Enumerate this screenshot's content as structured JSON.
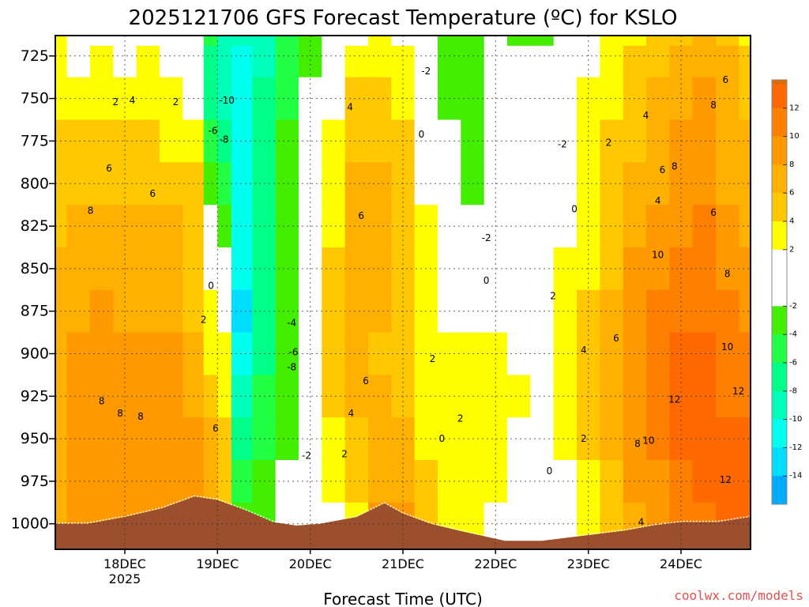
{
  "chart_data": {
    "type": "heatmap",
    "title": "2025121706 GFS Forecast Temperature (ºC) for KSLO",
    "xlabel": "Forecast Time (UTC)",
    "ylabel": "",
    "watermark": "coolwx.com/models",
    "x_ticks": [
      {
        "label": "18DEC",
        "sublabel": "2025",
        "t": 18.0
      },
      {
        "label": "19DEC",
        "sublabel": "",
        "t": 19.0
      },
      {
        "label": "20DEC",
        "sublabel": "",
        "t": 20.0
      },
      {
        "label": "21DEC",
        "sublabel": "",
        "t": 21.0
      },
      {
        "label": "22DEC",
        "sublabel": "",
        "t": 22.0
      },
      {
        "label": "23DEC",
        "sublabel": "",
        "t": 23.0
      },
      {
        "label": "24DEC",
        "sublabel": "",
        "t": 24.0
      }
    ],
    "xlim": [
      17.25,
      24.75
    ],
    "y_ticks": [
      725,
      750,
      775,
      800,
      825,
      850,
      875,
      900,
      925,
      950,
      975,
      1000
    ],
    "ylim": [
      1015,
      713
    ],
    "grid": true,
    "colorbar": {
      "ticks": [
        12,
        10,
        8,
        6,
        4,
        2,
        -2,
        -4,
        -6,
        -8,
        -10,
        -12,
        -14
      ],
      "bands": [
        {
          "min": 12,
          "max": 14,
          "color": "#ff6a00"
        },
        {
          "min": 10,
          "max": 12,
          "color": "#ff7f00"
        },
        {
          "min": 8,
          "max": 10,
          "color": "#ff9900"
        },
        {
          "min": 6,
          "max": 8,
          "color": "#ffb000"
        },
        {
          "min": 4,
          "max": 6,
          "color": "#ffc800"
        },
        {
          "min": 2,
          "max": 4,
          "color": "#ffff00"
        },
        {
          "min": -2,
          "max": 2,
          "color": "#ffffff"
        },
        {
          "min": -4,
          "max": -2,
          "color": "#44ee00"
        },
        {
          "min": -6,
          "max": -4,
          "color": "#22ff44"
        },
        {
          "min": -8,
          "max": -6,
          "color": "#00ff88"
        },
        {
          "min": -10,
          "max": -8,
          "color": "#00ffbb"
        },
        {
          "min": -12,
          "max": -10,
          "color": "#00ffee"
        },
        {
          "min": -14,
          "max": -12,
          "color": "#00ddff"
        },
        {
          "min": -16,
          "max": -14,
          "color": "#00aaff"
        }
      ],
      "top_color": "#e06a00"
    },
    "columns_t": [
      17.25,
      17.5,
      17.75,
      18.0,
      18.25,
      18.5,
      18.75,
      18.95,
      19.05,
      19.25,
      19.5,
      19.75,
      20.0,
      20.25,
      20.5,
      20.75,
      21.0,
      21.25,
      21.5,
      21.75,
      22.0,
      22.25,
      22.5,
      22.75,
      23.0,
      23.25,
      23.5,
      23.75,
      24.0,
      24.25,
      24.5,
      24.75
    ],
    "pressure_levels": [
      713,
      725,
      750,
      775,
      800,
      825,
      850,
      875,
      900,
      925,
      950,
      975,
      1000
    ],
    "temperature": [
      [
        2,
        2,
        3,
        4,
        4,
        5,
        6,
        6,
        7,
        7,
        7,
        7,
        7
      ],
      [
        0,
        1,
        2,
        4,
        5,
        6,
        7,
        7,
        8,
        8,
        8,
        8,
        8
      ],
      [
        1,
        2,
        3,
        4,
        5,
        6,
        7,
        8,
        8,
        8,
        8,
        8,
        8
      ],
      [
        0,
        1,
        2,
        4,
        5,
        6,
        7,
        7,
        8,
        8,
        8,
        8,
        8
      ],
      [
        1,
        2,
        3,
        4,
        5,
        6,
        7,
        7,
        8,
        8,
        8,
        8,
        8
      ],
      [
        1,
        1,
        2,
        3,
        5,
        6,
        7,
        7,
        8,
        8,
        9,
        9,
        9
      ],
      [
        0,
        0,
        1,
        2,
        4,
        4,
        5,
        5,
        6,
        7,
        8,
        9,
        10
      ],
      [
        -6,
        -7,
        -8,
        -6,
        -3,
        -1,
        0,
        2,
        3,
        5,
        6,
        6,
        6
      ],
      [
        -9,
        -10,
        -9,
        -8,
        -6,
        -4,
        -1,
        1,
        2,
        3,
        4,
        4,
        4
      ],
      [
        -10,
        -11,
        -11,
        -11,
        -11,
        -12,
        -12,
        -13,
        -12,
        -10,
        -8,
        -6,
        -4
      ],
      [
        -9,
        -9,
        -8,
        -8,
        -8,
        -8,
        -8,
        -7,
        -7,
        -6,
        -5,
        -4,
        -3
      ],
      [
        -5,
        -5,
        -5,
        -4,
        -4,
        -3,
        -4,
        -4,
        -4,
        -4,
        -3,
        -2,
        -2
      ],
      [
        -3,
        -3,
        -2,
        -1,
        0,
        1,
        1,
        1,
        1,
        1,
        1,
        1,
        0
      ],
      [
        -2,
        -1,
        1,
        2,
        3,
        3,
        4,
        4,
        4,
        4,
        3,
        2,
        1
      ],
      [
        1,
        2,
        4,
        5,
        6,
        6,
        7,
        7,
        7,
        6,
        5,
        4,
        3
      ],
      [
        2,
        3,
        4,
        5,
        6,
        6,
        6,
        6,
        5,
        6,
        6,
        7,
        8
      ],
      [
        1,
        2,
        3,
        4,
        4,
        4,
        4,
        4,
        4,
        5,
        6,
        7,
        8
      ],
      [
        -2,
        -1,
        0,
        1,
        1,
        2,
        2,
        2,
        2,
        3,
        3,
        4,
        4
      ],
      [
        -3,
        -3,
        -3,
        -2,
        -2,
        -1,
        0,
        1,
        2,
        2,
        2,
        2,
        2
      ],
      [
        -3,
        -3,
        -3,
        -3,
        -3,
        -2,
        0,
        1,
        2,
        3,
        3,
        2,
        2
      ],
      [
        -2,
        -1,
        0,
        0,
        0,
        -1,
        0,
        1,
        2,
        3,
        3,
        2,
        1
      ],
      [
        -3,
        -2,
        -1,
        0,
        0,
        0,
        1,
        1,
        1,
        2,
        1,
        0,
        -1
      ],
      [
        -3,
        -2,
        -1,
        0,
        0,
        1,
        1,
        1,
        1,
        1,
        1,
        0,
        0
      ],
      [
        0,
        0,
        0,
        0,
        1,
        1,
        2,
        3,
        3,
        3,
        2,
        1,
        0
      ],
      [
        1,
        1,
        2,
        2,
        2,
        3,
        3,
        4,
        4,
        4,
        4,
        3,
        2
      ],
      [
        2,
        3,
        3,
        4,
        4,
        5,
        5,
        6,
        6,
        6,
        6,
        5,
        4
      ],
      [
        3,
        4,
        5,
        5,
        6,
        7,
        8,
        8,
        8,
        8,
        8,
        8,
        6
      ],
      [
        4,
        5,
        6,
        6,
        7,
        8,
        9,
        10,
        10,
        10,
        10,
        9,
        8
      ],
      [
        5,
        6,
        7,
        8,
        8,
        9,
        10,
        11,
        12,
        12,
        12,
        11,
        10
      ],
      [
        6,
        7,
        8,
        8,
        9,
        10,
        10,
        11,
        12,
        12,
        12,
        12,
        11
      ],
      [
        5,
        6,
        7,
        7,
        7,
        8,
        9,
        10,
        11,
        11,
        12,
        12,
        12
      ],
      [
        3,
        4,
        5,
        6,
        6,
        7,
        8,
        9,
        10,
        11,
        12,
        12,
        12
      ]
    ],
    "terrain_surface_pressure": [
      {
        "t": 17.25,
        "p": 1000
      },
      {
        "t": 17.6,
        "p": 1000
      },
      {
        "t": 18.0,
        "p": 996
      },
      {
        "t": 18.4,
        "p": 991
      },
      {
        "t": 18.75,
        "p": 984
      },
      {
        "t": 19.0,
        "p": 986
      },
      {
        "t": 19.3,
        "p": 992
      },
      {
        "t": 19.6,
        "p": 999
      },
      {
        "t": 19.85,
        "p": 1001
      },
      {
        "t": 20.1,
        "p": 1000
      },
      {
        "t": 20.5,
        "p": 996
      },
      {
        "t": 20.8,
        "p": 988
      },
      {
        "t": 21.0,
        "p": 994
      },
      {
        "t": 21.3,
        "p": 1000
      },
      {
        "t": 21.6,
        "p": 1004
      },
      {
        "t": 21.85,
        "p": 1007
      },
      {
        "t": 22.1,
        "p": 1010
      },
      {
        "t": 22.5,
        "p": 1010
      },
      {
        "t": 22.8,
        "p": 1008
      },
      {
        "t": 23.1,
        "p": 1006
      },
      {
        "t": 23.4,
        "p": 1004
      },
      {
        "t": 23.7,
        "p": 1001
      },
      {
        "t": 24.0,
        "p": 999
      },
      {
        "t": 24.4,
        "p": 999
      },
      {
        "t": 24.75,
        "p": 996
      }
    ],
    "terrain_color": "#9c4f2d",
    "contour_labels": [
      {
        "text": "2",
        "t": 17.9,
        "p": 752
      },
      {
        "text": "4",
        "t": 18.08,
        "p": 751
      },
      {
        "text": "2",
        "t": 18.55,
        "p": 752
      },
      {
        "text": "6",
        "t": 17.83,
        "p": 791
      },
      {
        "text": "6",
        "t": 18.3,
        "p": 806
      },
      {
        "text": "8",
        "t": 17.63,
        "p": 816
      },
      {
        "text": "-10",
        "t": 19.1,
        "p": 751
      },
      {
        "text": "-6",
        "t": 18.95,
        "p": 769
      },
      {
        "text": "-8",
        "t": 19.07,
        "p": 774
      },
      {
        "text": "0",
        "t": 18.93,
        "p": 860
      },
      {
        "text": "2",
        "t": 18.85,
        "p": 880
      },
      {
        "text": "6",
        "t": 18.98,
        "p": 944
      },
      {
        "text": "8",
        "t": 17.75,
        "p": 928
      },
      {
        "text": "8",
        "t": 17.95,
        "p": 935
      },
      {
        "text": "8",
        "t": 18.17,
        "p": 937
      },
      {
        "text": "-4",
        "t": 19.8,
        "p": 882
      },
      {
        "text": "-6",
        "t": 19.82,
        "p": 899
      },
      {
        "text": "-8",
        "t": 19.8,
        "p": 908
      },
      {
        "text": "-2",
        "t": 19.96,
        "p": 960
      },
      {
        "text": "4",
        "t": 20.43,
        "p": 755
      },
      {
        "text": "6",
        "t": 20.55,
        "p": 819
      },
      {
        "text": "6",
        "t": 20.6,
        "p": 916
      },
      {
        "text": "4",
        "t": 20.44,
        "p": 935
      },
      {
        "text": "2",
        "t": 20.37,
        "p": 959
      },
      {
        "text": "-2",
        "t": 21.25,
        "p": 734
      },
      {
        "text": "0",
        "t": 21.2,
        "p": 771
      },
      {
        "text": "2",
        "t": 21.32,
        "p": 903
      },
      {
        "text": "-2",
        "t": 21.9,
        "p": 832
      },
      {
        "text": "0",
        "t": 21.9,
        "p": 857
      },
      {
        "text": "2",
        "t": 21.62,
        "p": 938
      },
      {
        "text": "0",
        "t": 21.42,
        "p": 950
      },
      {
        "text": "0",
        "t": 22.58,
        "p": 969
      },
      {
        "text": "2",
        "t": 22.95,
        "p": 950
      },
      {
        "text": "2",
        "t": 22.62,
        "p": 866
      },
      {
        "text": "0",
        "t": 22.85,
        "p": 815
      },
      {
        "text": "-2",
        "t": 22.72,
        "p": 777
      },
      {
        "text": "2",
        "t": 23.22,
        "p": 776
      },
      {
        "text": "4",
        "t": 23.62,
        "p": 760
      },
      {
        "text": "4",
        "t": 23.75,
        "p": 810
      },
      {
        "text": "4",
        "t": 22.95,
        "p": 898
      },
      {
        "text": "6",
        "t": 23.3,
        "p": 891
      },
      {
        "text": "6",
        "t": 23.8,
        "p": 792
      },
      {
        "text": "8",
        "t": 23.93,
        "p": 790
      },
      {
        "text": "8",
        "t": 24.35,
        "p": 754
      },
      {
        "text": "6",
        "t": 24.48,
        "p": 739
      },
      {
        "text": "6",
        "t": 24.35,
        "p": 817
      },
      {
        "text": "10",
        "t": 23.75,
        "p": 842
      },
      {
        "text": "8",
        "t": 24.5,
        "p": 853
      },
      {
        "text": "10",
        "t": 24.5,
        "p": 896
      },
      {
        "text": "12",
        "t": 23.93,
        "p": 927
      },
      {
        "text": "12",
        "t": 24.62,
        "p": 922
      },
      {
        "text": "8",
        "t": 23.53,
        "p": 953
      },
      {
        "text": "10",
        "t": 23.65,
        "p": 951
      },
      {
        "text": "12",
        "t": 24.48,
        "p": 974
      },
      {
        "text": "4",
        "t": 23.57,
        "p": 999
      }
    ]
  }
}
